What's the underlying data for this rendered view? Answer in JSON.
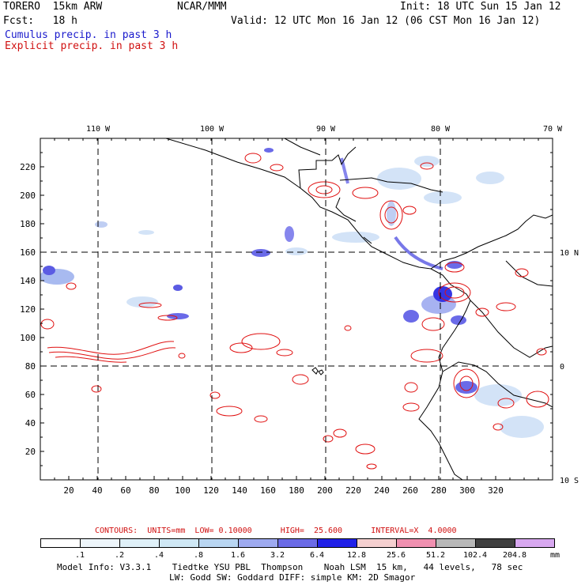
{
  "header": {
    "model": "TORERO  15km ARW",
    "org": "NCAR/MMM",
    "init": "Init: 18 UTC Sun 15 Jan 12",
    "fcst": "Fcst:   18 h",
    "valid": "Valid: 12 UTC Mon 16 Jan 12 (06 CST Mon 16 Jan 12)",
    "legend_cumulus": "Cumulus precip. in past 3 h",
    "legend_explicit": "Explicit precip. in past 3 h"
  },
  "map": {
    "top_lon_labels": [
      "110 W",
      "100 W",
      "90 W",
      "80 W",
      "70 W"
    ],
    "right_lat_labels": [
      "10 N",
      "0",
      "10 S"
    ],
    "y_ticks": [
      "220",
      "200",
      "180",
      "160",
      "140",
      "120",
      "100",
      "80",
      "60",
      "40",
      "20"
    ],
    "x_ticks": [
      "20",
      "40",
      "60",
      "80",
      "100",
      "120",
      "140",
      "160",
      "180",
      "200",
      "220",
      "240",
      "260",
      "280",
      "300",
      "320"
    ],
    "cumulus_color": "#2a2ad0",
    "explicit_color": "#e01010"
  },
  "contour_info": "CONTOURS:  UNITS=mm  LOW= 0.10000      HIGH=  25.600      INTERVAL=X  4.0000",
  "colorbar": {
    "labels": [
      ".1",
      ".2",
      ".4",
      ".8",
      "1.6",
      "3.2",
      "6.4",
      "12.8",
      "25.6",
      "51.2",
      "102.4",
      "204.8"
    ],
    "unit": "mm",
    "colors": [
      "#ffffff",
      "#eef6fb",
      "#dff0f8",
      "#cfe8f5",
      "#b9d6f2",
      "#9eaaf0",
      "#6a6ae6",
      "#2020e8",
      "#f5d0d0",
      "#f090b0",
      "#b8b8b8",
      "#404040",
      "#d8a8f0"
    ]
  },
  "footer": {
    "line1": "Model Info: V3.3.1    Tiedtke YSU PBL  Thompson    Noah LSM  15 km,   44 levels,   78 sec",
    "line2": "LW: Godd SW: Goddard DIFF: simple KM: 2D Smagor"
  }
}
